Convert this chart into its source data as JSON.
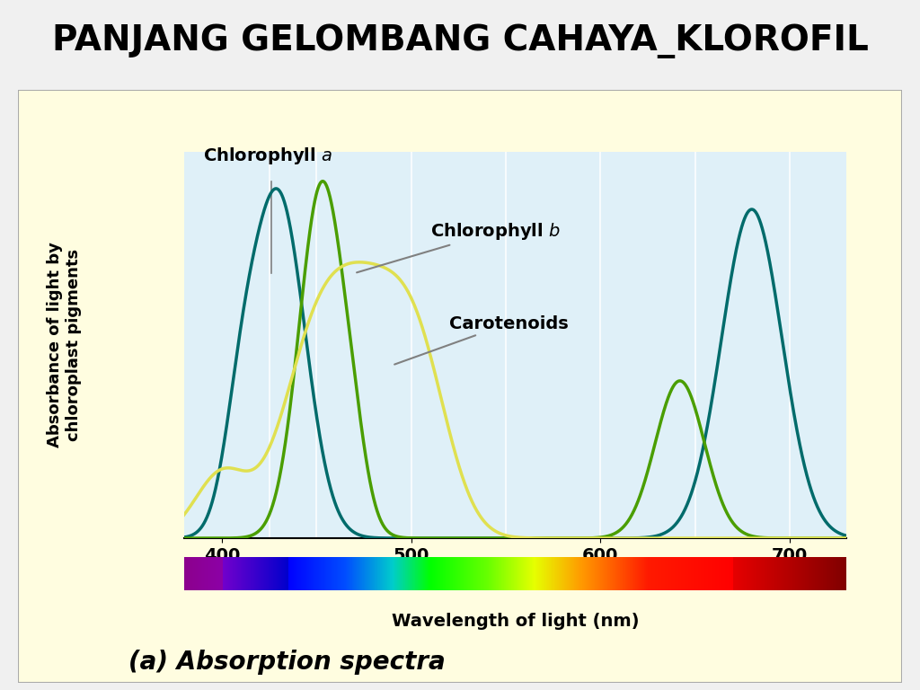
{
  "title": "PANJANG GELOMBANG CAHAYA_KLOROFIL",
  "title_bg": "#c8d89a",
  "chart_bg": "#dff0f8",
  "outer_bg": "#fffde0",
  "ylabel": "Absorbance of light by\nchloroplast pigments",
  "xlabel": "Wavelength of light (nm)",
  "subtitle": "(a) Absorption spectra",
  "x_ticks": [
    400,
    500,
    600,
    700
  ],
  "wavelength_min": 380,
  "wavelength_max": 730,
  "chl_a_color": "#006b6b",
  "chl_b_color": "#4a9e00",
  "carot_color": "#e0e050",
  "vline_positions": [
    425,
    450,
    500,
    550,
    600,
    650,
    700
  ]
}
